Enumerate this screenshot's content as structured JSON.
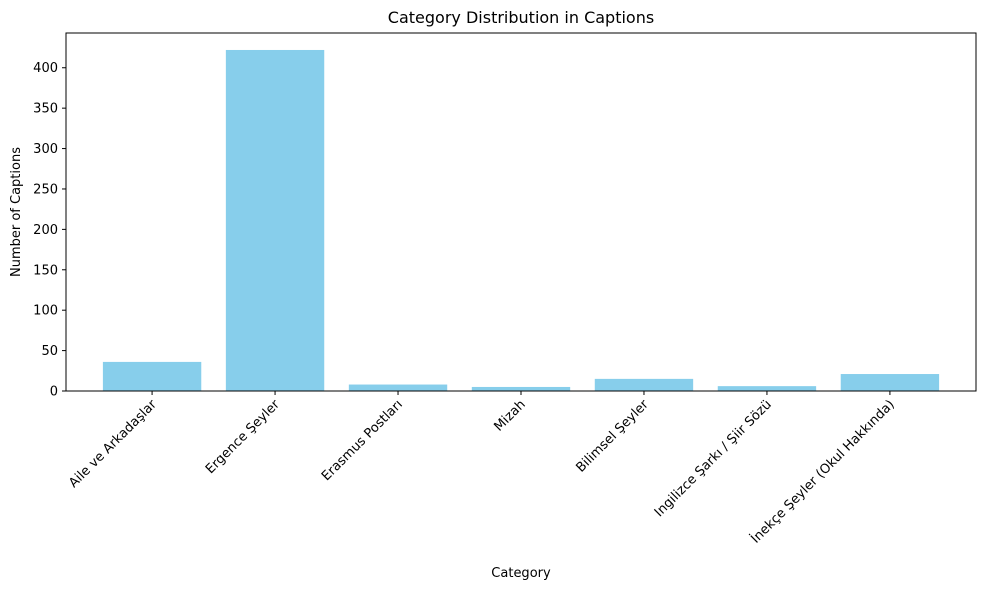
{
  "chart_data": {
    "type": "bar",
    "title": "Category Distribution in Captions",
    "xlabel": "Category",
    "ylabel": "Number of Captions",
    "categories": [
      "Aile ve Arkadaşlar",
      "Ergence Şeyler",
      "Erasmus Postları",
      "Mizah",
      "Bilimsel Şeyler",
      "Ingilizce Şarkı / Şiir Sözü",
      "İnekçe Şeyler (Okul Hakkında)"
    ],
    "values": [
      36,
      422,
      8,
      5,
      15,
      6,
      21
    ],
    "ylim": [
      0,
      443
    ],
    "yticks": [
      0,
      50,
      100,
      150,
      200,
      250,
      300,
      350,
      400
    ],
    "bar_color": "#87CEEB",
    "grid": false,
    "xtick_rotation_deg": 45
  }
}
